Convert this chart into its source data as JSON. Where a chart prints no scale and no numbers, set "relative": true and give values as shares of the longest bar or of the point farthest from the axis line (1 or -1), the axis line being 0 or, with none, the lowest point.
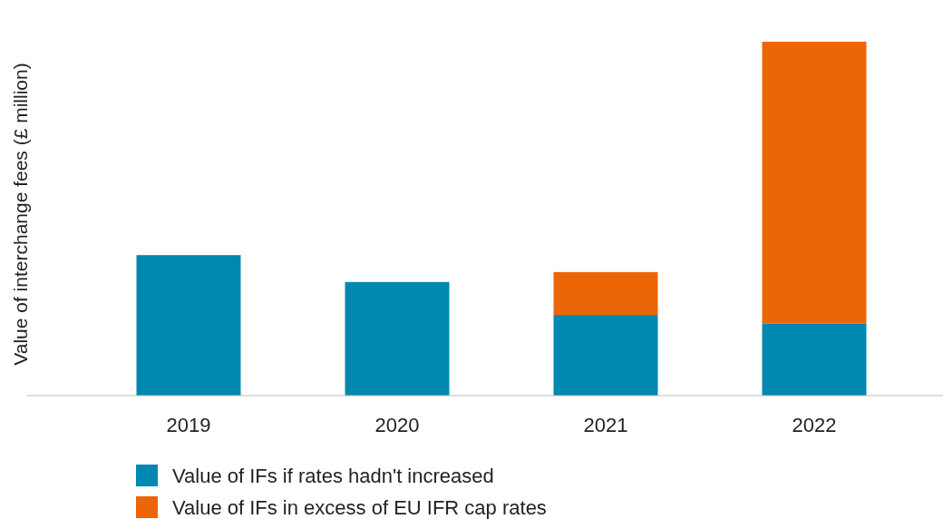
{
  "chart_data": {
    "type": "bar",
    "stacked": true,
    "relative": true,
    "ylabel": "Value of interchange fees (£ million)",
    "categories": [
      "2019",
      "2020",
      "2021",
      "2022"
    ],
    "series": [
      {
        "name": "Value of IFs if rates hadn't increased",
        "color": "#0088b0",
        "values": [
          0.397,
          0.321,
          0.228,
          0.203
        ]
      },
      {
        "name": "Value of IFs in excess of EU IFR cap rates",
        "color": "#ec6608",
        "values": [
          0,
          0,
          0.121,
          0.797
        ]
      }
    ],
    "legend": "bottom"
  }
}
